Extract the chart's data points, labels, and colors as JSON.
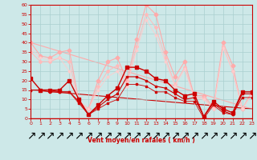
{
  "xlabel": "Vent moyen/en rafales ( km/h )",
  "xlim": [
    0,
    23
  ],
  "ylim": [
    0,
    60
  ],
  "yticks": [
    0,
    5,
    10,
    15,
    20,
    25,
    30,
    35,
    40,
    45,
    50,
    55,
    60
  ],
  "xticks": [
    0,
    1,
    2,
    3,
    4,
    5,
    6,
    7,
    8,
    9,
    10,
    11,
    12,
    13,
    14,
    15,
    16,
    17,
    18,
    19,
    20,
    21,
    22,
    23
  ],
  "bg_color": "#cde8e8",
  "grid_color": "#aacfcf",
  "arrow_color": "#cc0000",
  "xlabel_color": "#cc0000",
  "tick_color": "#cc0000",
  "axis_color": "#cc0000",
  "series": [
    {
      "color": "#ffaaaa",
      "marker": "D",
      "ms": 2.5,
      "lw": 0.8,
      "y": [
        40,
        33,
        32,
        35,
        36,
        9,
        5,
        20,
        30,
        32,
        20,
        42,
        60,
        55,
        35,
        22,
        30,
        12,
        12,
        6,
        40,
        28,
        5,
        14
      ]
    },
    {
      "color": "#ffbbbb",
      "marker": "D",
      "ms": 2.0,
      "lw": 0.7,
      "y": [
        35,
        30,
        30,
        32,
        30,
        9,
        5,
        17,
        25,
        28,
        18,
        38,
        55,
        48,
        32,
        18,
        27,
        11,
        11,
        5,
        38,
        25,
        5,
        13
      ]
    },
    {
      "color": "#ffcccc",
      "marker": "D",
      "ms": 1.5,
      "lw": 0.6,
      "y": [
        37,
        32,
        31,
        32,
        25,
        9,
        5,
        15,
        22,
        25,
        17,
        36,
        52,
        44,
        30,
        17,
        26,
        11,
        10,
        5,
        37,
        25,
        5,
        13
      ]
    },
    {
      "color": "#cc0000",
      "marker": "s",
      "ms": 2.5,
      "lw": 1.0,
      "y": [
        21,
        15,
        15,
        15,
        20,
        10,
        2,
        7,
        12,
        16,
        27,
        27,
        25,
        21,
        20,
        15,
        12,
        13,
        1,
        9,
        5,
        3,
        14,
        14
      ]
    },
    {
      "color": "#cc0000",
      "marker": "s",
      "ms": 2.0,
      "lw": 0.8,
      "y": [
        15,
        15,
        15,
        14,
        14,
        9,
        2,
        6,
        10,
        13,
        22,
        22,
        20,
        17,
        16,
        13,
        10,
        11,
        1,
        8,
        4,
        2,
        13,
        13
      ]
    },
    {
      "color": "#cc0000",
      "marker": "s",
      "ms": 1.5,
      "lw": 0.6,
      "y": [
        15,
        15,
        14,
        14,
        14,
        8,
        2,
        5,
        8,
        10,
        18,
        18,
        17,
        14,
        14,
        11,
        9,
        9,
        0,
        7,
        3,
        2,
        11,
        11
      ]
    }
  ],
  "trend_lines": [
    {
      "color": "#ffaaaa",
      "lw": 0.8,
      "start": 40,
      "end": 5
    },
    {
      "color": "#cc0000",
      "lw": 0.8,
      "start": 15,
      "end": 5
    }
  ]
}
